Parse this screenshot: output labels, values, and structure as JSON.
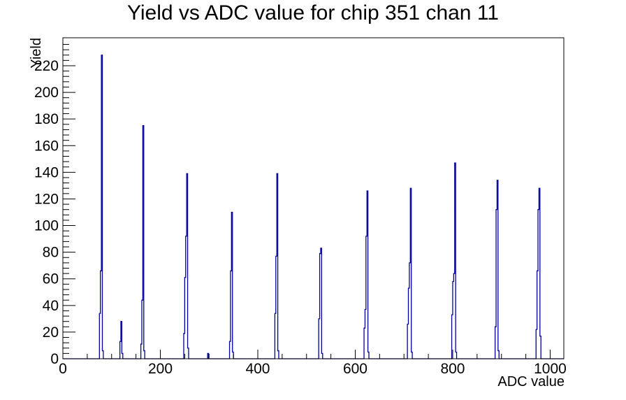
{
  "title": "Yield vs ADC value for chip 351 chan 11",
  "axes": {
    "x_label": "ADC value",
    "y_label": "Yield"
  },
  "colors": {
    "hist_line": "#000099",
    "axis_line": "#000000",
    "text": "#000000",
    "background": "#ffffff"
  },
  "chart_data": {
    "type": "bar",
    "title": "Yield vs ADC value for chip 351 chan 11",
    "xlabel": "ADC value",
    "ylabel": "Yield",
    "xlim": [
      0,
      1028
    ],
    "ylim": [
      0,
      241
    ],
    "x_major_ticks": [
      0,
      200,
      400,
      600,
      800,
      1000
    ],
    "x_minor_step": 50,
    "y_major_ticks": [
      0,
      20,
      40,
      60,
      80,
      100,
      120,
      140,
      160,
      180,
      200,
      220
    ],
    "y_minor_step": 4,
    "grid": false,
    "legend": false,
    "bin_width_adc": 2,
    "peaks": [
      {
        "adc": 80,
        "yield": 228,
        "profile": [
          34,
          66,
          228,
          6
        ]
      },
      {
        "adc": 120,
        "yield": 28,
        "profile": [
          13,
          28,
          4
        ]
      },
      {
        "adc": 165,
        "yield": 175,
        "profile": [
          11,
          44,
          175,
          6
        ]
      },
      {
        "adc": 255,
        "yield": 139,
        "profile": [
          19,
          61,
          92,
          139,
          8
        ]
      },
      {
        "adc": 298,
        "yield": 4,
        "profile": [
          4
        ]
      },
      {
        "adc": 347,
        "yield": 110,
        "profile": [
          13,
          66,
          110,
          5
        ]
      },
      {
        "adc": 440,
        "yield": 139,
        "profile": [
          34,
          77,
          139,
          6
        ]
      },
      {
        "adc": 530,
        "yield": 83,
        "profile": [
          30,
          79,
          83,
          4
        ]
      },
      {
        "adc": 625,
        "yield": 126,
        "profile": [
          23,
          37,
          92,
          126,
          5
        ]
      },
      {
        "adc": 714,
        "yield": 128,
        "profile": [
          26,
          53,
          72,
          128,
          5
        ]
      },
      {
        "adc": 805,
        "yield": 147,
        "profile": [
          33,
          58,
          64,
          147,
          5
        ]
      },
      {
        "adc": 892,
        "yield": 134,
        "profile": [
          24,
          112,
          134,
          6
        ]
      },
      {
        "adc": 978,
        "yield": 128,
        "profile": [
          22,
          66,
          112,
          128,
          17
        ]
      }
    ]
  }
}
